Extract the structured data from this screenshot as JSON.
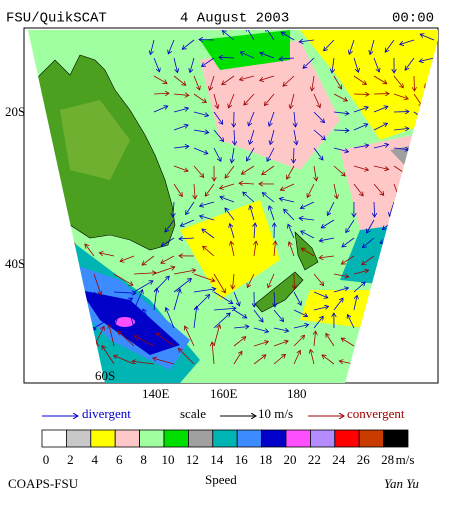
{
  "header": {
    "title": "FSU/QuikSCAT",
    "date": "4 August 2003",
    "time": "00:00"
  },
  "map": {
    "lat_labels": [
      "20S",
      "40S",
      "60S"
    ],
    "lon_labels": [
      "140E",
      "160E",
      "180"
    ]
  },
  "legend": {
    "divergent": "divergent",
    "scale": "scale",
    "scale_value": "10 m/s",
    "convergent": "convergent"
  },
  "colorbar": {
    "colors": [
      "#ffffff",
      "#c8c8c8",
      "#ffff00",
      "#ffc8c8",
      "#a0ffa0",
      "#00e000",
      "#a0a0a0",
      "#00b4b4",
      "#3c8cff",
      "#0000c8",
      "#ff50ff",
      "#b48cff",
      "#ff0000",
      "#c83c00",
      "#000000"
    ],
    "labels": [
      0,
      2,
      4,
      6,
      8,
      10,
      12,
      14,
      16,
      18,
      20,
      22,
      24,
      26,
      28
    ],
    "unit": "m/s",
    "title": "Speed"
  },
  "footer": {
    "left": "COAPS-FSU",
    "right": "Yan Yu"
  }
}
